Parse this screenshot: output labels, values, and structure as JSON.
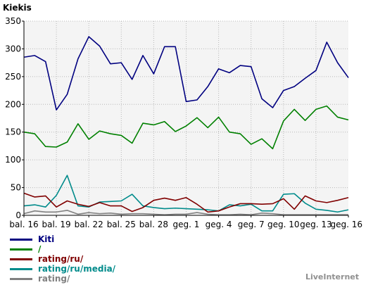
{
  "chart_data": {
    "type": "line",
    "title": "",
    "ylabel": "Kiekis",
    "xlabel": "",
    "ylim": [
      0,
      350
    ],
    "yticks": [
      0,
      50,
      100,
      150,
      200,
      250,
      300,
      350
    ],
    "grid": true,
    "legend_position": "bottom-left",
    "x_tick_labels": [
      {
        "index": 0,
        "label": "bal. 16"
      },
      {
        "index": 3,
        "label": "bal. 19"
      },
      {
        "index": 6,
        "label": "bal. 22"
      },
      {
        "index": 9,
        "label": "bal. 25"
      },
      {
        "index": 12,
        "label": "bal. 28"
      },
      {
        "index": 15,
        "label": "geg. 1"
      },
      {
        "index": 18,
        "label": "geg. 4"
      },
      {
        "index": 21,
        "label": "geg. 7"
      },
      {
        "index": 24,
        "label": "geg. 10"
      },
      {
        "index": 27,
        "label": "geg. 13"
      },
      {
        "index": 30,
        "label": "geg. 16"
      }
    ],
    "series": [
      {
        "name": "Kiti",
        "color": "#000080",
        "values": [
          285,
          288,
          277,
          190,
          218,
          282,
          322,
          305,
          273,
          275,
          245,
          288,
          255,
          304,
          304,
          205,
          208,
          232,
          264,
          257,
          270,
          268,
          210,
          194,
          225,
          232,
          247,
          261,
          312,
          275,
          248
        ]
      },
      {
        "name": "/",
        "color": "#008000",
        "values": [
          150,
          147,
          124,
          123,
          132,
          165,
          137,
          152,
          147,
          144,
          130,
          166,
          163,
          169,
          151,
          161,
          176,
          158,
          177,
          150,
          147,
          128,
          138,
          120,
          170,
          191,
          171,
          191,
          197,
          177,
          172
        ]
      },
      {
        "name": "rating/ru/",
        "color": "#800000",
        "values": [
          40,
          33,
          35,
          15,
          26,
          20,
          16,
          23,
          17,
          17,
          7,
          14,
          27,
          31,
          27,
          32,
          20,
          6,
          8,
          15,
          21,
          21,
          20,
          21,
          30,
          11,
          35,
          26,
          23,
          27,
          32
        ]
      },
      {
        "name": "rating/ru/media/",
        "color": "#008b8b",
        "values": [
          17,
          19,
          15,
          36,
          72,
          17,
          15,
          24,
          25,
          26,
          38,
          17,
          14,
          12,
          13,
          12,
          11,
          10,
          8,
          19,
          17,
          20,
          8,
          8,
          38,
          39,
          22,
          11,
          9,
          6,
          10
        ]
      },
      {
        "name": "rating/",
        "color": "#808080",
        "values": [
          3,
          8,
          6,
          6,
          9,
          2,
          5,
          3,
          4,
          2,
          3,
          3,
          2,
          1,
          2,
          2,
          5,
          2,
          1,
          1,
          2,
          1,
          4,
          3,
          1,
          1,
          1,
          1,
          1,
          1,
          1
        ]
      }
    ]
  },
  "branding": {
    "text": "LiveInternet"
  }
}
